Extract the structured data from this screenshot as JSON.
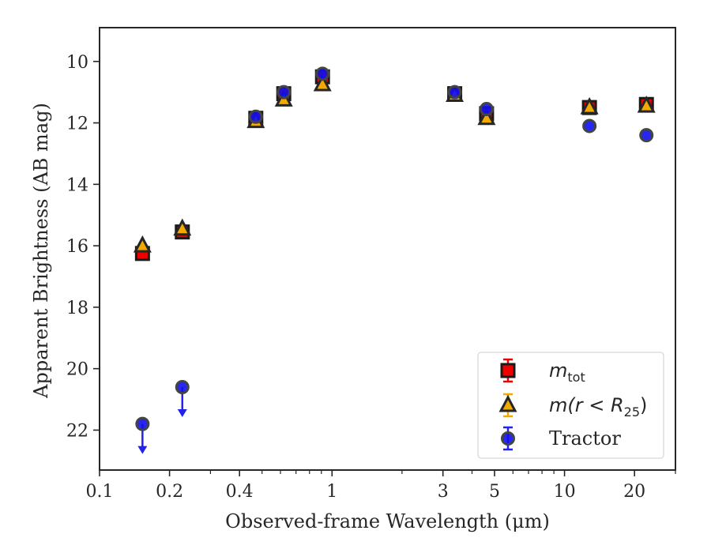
{
  "chart_data": {
    "type": "scatter",
    "xlabel": "Observed-frame Wavelength (μm)",
    "ylabel": "Apparent Brightness (AB mag)",
    "xscale": "log",
    "xlim": [
      0.1,
      30
    ],
    "ylim": [
      23.3,
      8.9
    ],
    "y_inverted": true,
    "grid": false,
    "legend_position": "lower-right",
    "x_ticks": [
      {
        "value": 0.1,
        "label": "0.1"
      },
      {
        "value": 0.2,
        "label": "0.2"
      },
      {
        "value": 0.4,
        "label": "0.4"
      },
      {
        "value": 1,
        "label": "1"
      },
      {
        "value": 3,
        "label": "3"
      },
      {
        "value": 5,
        "label": "5"
      },
      {
        "value": 10,
        "label": "10"
      },
      {
        "value": 20,
        "label": "20"
      }
    ],
    "x_minor_ticks": [
      0.3,
      0.5,
      0.6,
      0.7,
      0.8,
      0.9,
      2,
      4,
      6,
      7,
      8,
      9,
      30
    ],
    "y_ticks": [
      {
        "value": 10,
        "label": "10"
      },
      {
        "value": 12,
        "label": "12"
      },
      {
        "value": 14,
        "label": "14"
      },
      {
        "value": 16,
        "label": "16"
      },
      {
        "value": 18,
        "label": "18"
      },
      {
        "value": 20,
        "label": "20"
      },
      {
        "value": 22,
        "label": "22"
      }
    ],
    "series": [
      {
        "name": "m_tot",
        "marker": "square",
        "color": "#ee0000",
        "edge_color": "#1a1a1a",
        "points": [
          {
            "x": 0.153,
            "y": 16.25
          },
          {
            "x": 0.227,
            "y": 15.55
          },
          {
            "x": 0.47,
            "y": 11.85
          },
          {
            "x": 0.62,
            "y": 11.05
          },
          {
            "x": 0.91,
            "y": 10.5
          },
          {
            "x": 3.37,
            "y": 11.05
          },
          {
            "x": 4.62,
            "y": 11.7
          },
          {
            "x": 12.8,
            "y": 11.5
          },
          {
            "x": 22.5,
            "y": 11.4
          }
        ]
      },
      {
        "name": "m(r<R25)",
        "marker": "triangle",
        "color": "#f2a900",
        "edge_color": "#262626",
        "points": [
          {
            "x": 0.153,
            "y": 16.0
          },
          {
            "x": 0.227,
            "y": 15.45
          },
          {
            "x": 0.47,
            "y": 11.95
          },
          {
            "x": 0.62,
            "y": 11.25
          },
          {
            "x": 0.91,
            "y": 10.75
          },
          {
            "x": 3.37,
            "y": 11.1
          },
          {
            "x": 4.62,
            "y": 11.85
          },
          {
            "x": 12.8,
            "y": 11.5
          },
          {
            "x": 22.5,
            "y": 11.45
          }
        ]
      },
      {
        "name": "Tractor",
        "marker": "circle",
        "color": "#1010ee",
        "edge_color": "#444444",
        "points": [
          {
            "x": 0.153,
            "y": 21.8,
            "upper_limit": true
          },
          {
            "x": 0.227,
            "y": 20.6,
            "upper_limit": true
          },
          {
            "x": 0.47,
            "y": 11.8
          },
          {
            "x": 0.62,
            "y": 11.0
          },
          {
            "x": 0.91,
            "y": 10.4
          },
          {
            "x": 3.37,
            "y": 11.0
          },
          {
            "x": 4.62,
            "y": 11.55
          },
          {
            "x": 12.8,
            "y": 12.1
          },
          {
            "x": 22.5,
            "y": 12.4
          }
        ]
      }
    ],
    "legend": [
      {
        "label_base": "m",
        "label_sub": "tot"
      },
      {
        "label_base": "m(r < R",
        "label_sub": "25",
        "label_after": ")"
      },
      {
        "label": "Tractor"
      }
    ]
  }
}
